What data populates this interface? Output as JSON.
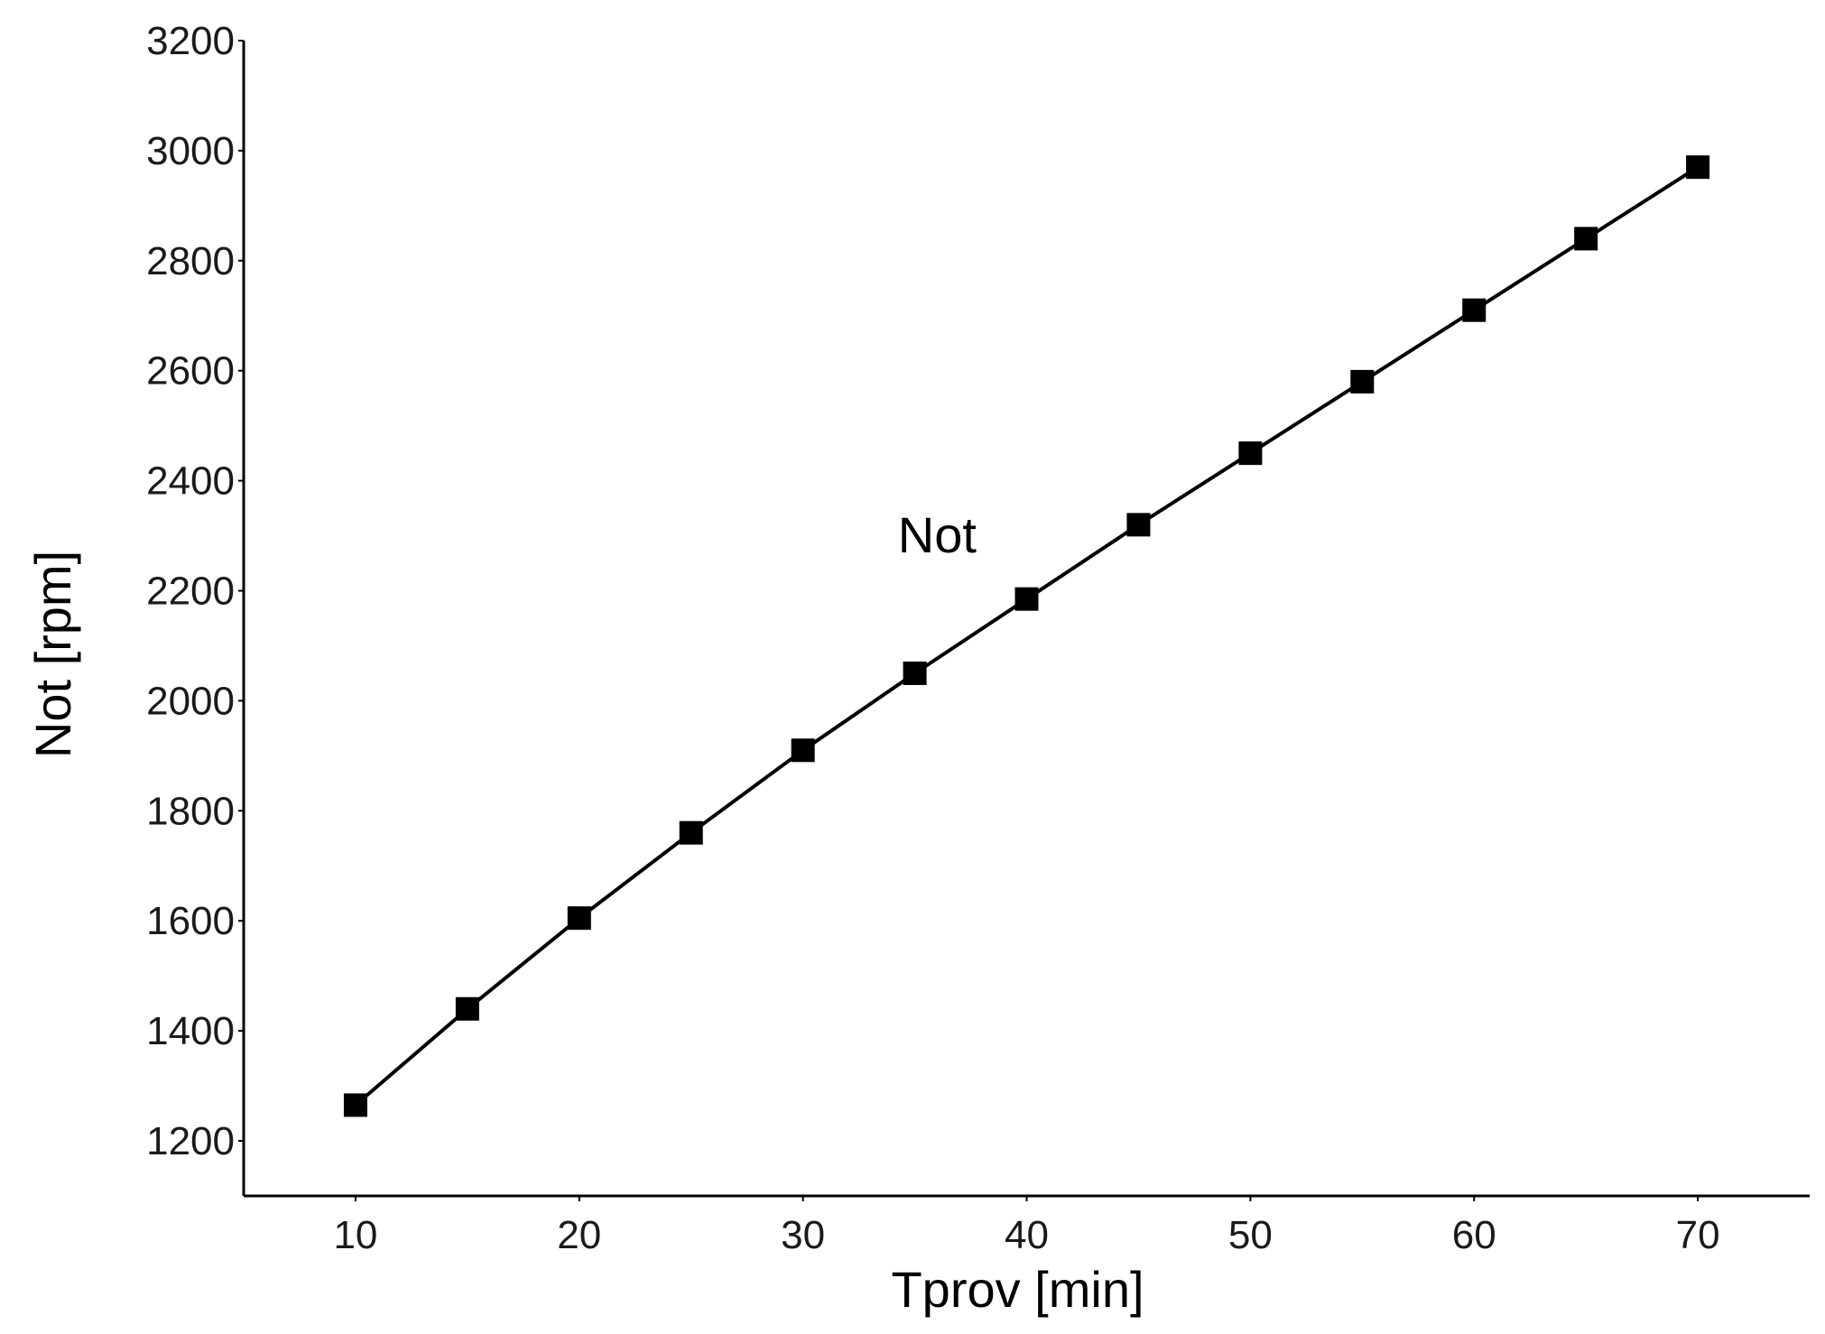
{
  "chart_data": {
    "type": "line",
    "title": "",
    "xlabel": "Tprov [min]",
    "ylabel": "Not [rpm]",
    "xlim": [
      5,
      75
    ],
    "ylim": [
      1100,
      3200
    ],
    "x_ticks": [
      10,
      20,
      30,
      40,
      50,
      60,
      70
    ],
    "y_ticks": [
      1200,
      1400,
      1600,
      1800,
      2000,
      2200,
      2400,
      2600,
      2800,
      3000,
      3200
    ],
    "grid": false,
    "legend": "none",
    "annotation": {
      "text": "Not",
      "x": 36,
      "y": 2270
    },
    "series": [
      {
        "marker": "square",
        "color": "#000000",
        "x": [
          10,
          15,
          20,
          25,
          30,
          35,
          40,
          45,
          50,
          55,
          60,
          65,
          70
        ],
        "y": [
          1265,
          1440,
          1605,
          1760,
          1910,
          2050,
          2185,
          2320,
          2450,
          2580,
          2710,
          2840,
          2970
        ]
      }
    ]
  }
}
